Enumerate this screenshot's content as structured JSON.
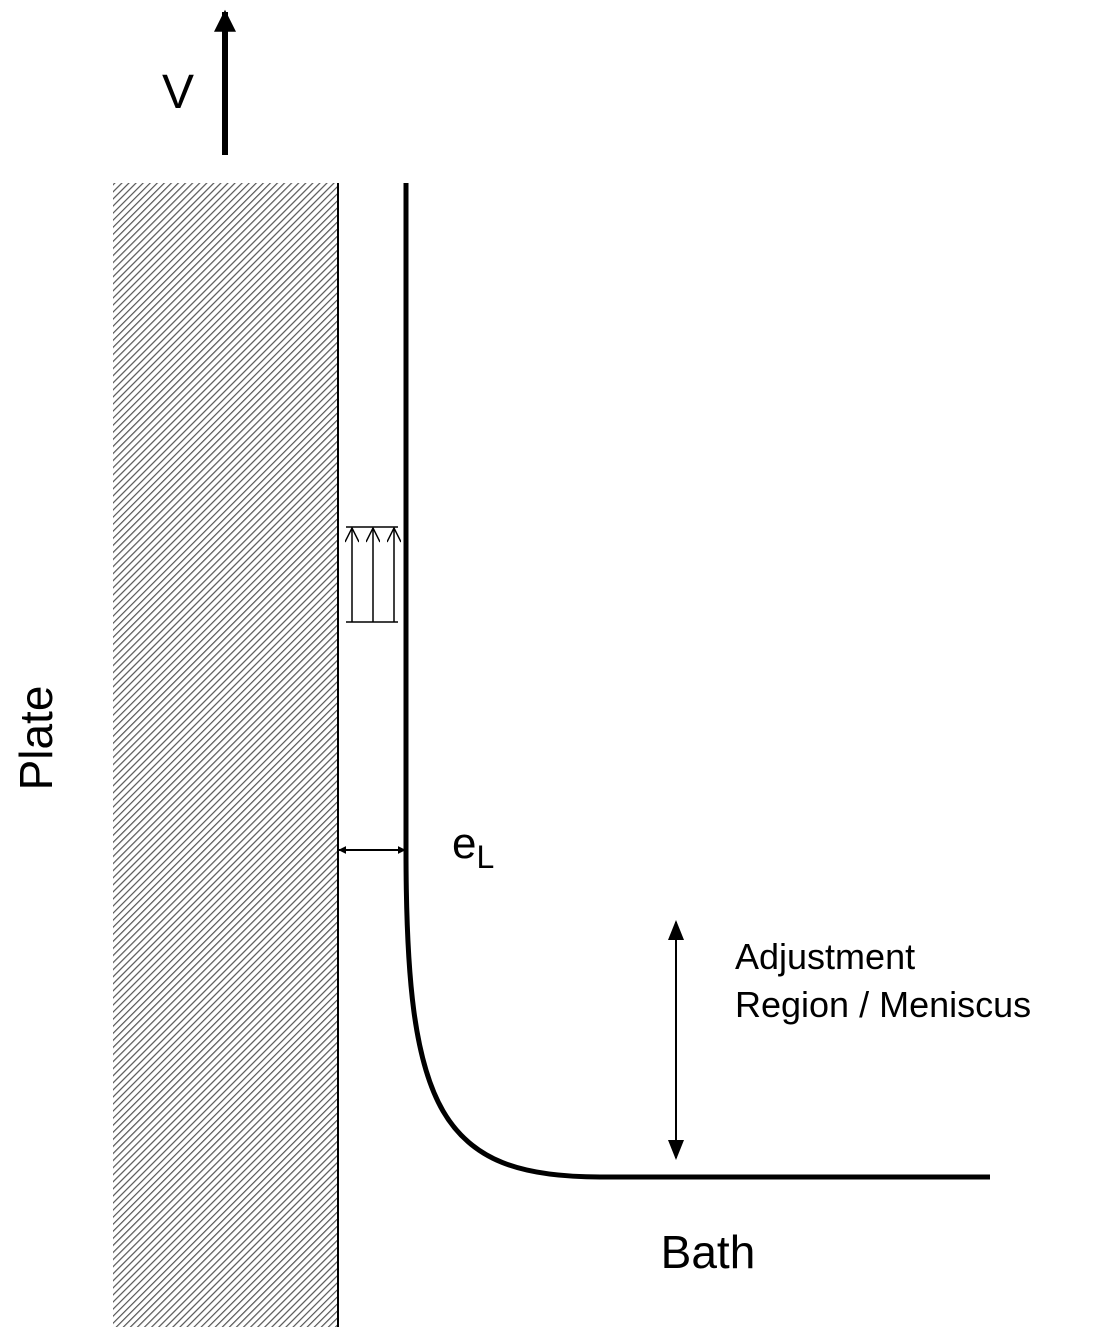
{
  "labels": {
    "velocity": "V",
    "plate": "Plate",
    "film_thickness": {
      "main": "e",
      "subscript": "L"
    },
    "meniscus": [
      "Adjustment",
      "Region / Meniscus"
    ],
    "bath": "Bath"
  }
}
